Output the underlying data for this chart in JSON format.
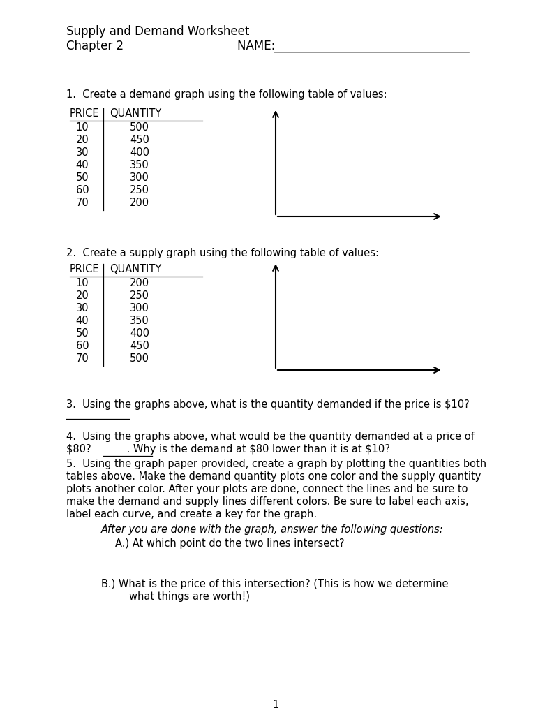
{
  "title_line1": "Supply and Demand Worksheet",
  "title_line2": "Chapter 2",
  "name_label": "NAME: ",
  "demand_price": [
    10,
    20,
    30,
    40,
    50,
    60,
    70
  ],
  "demand_quantity": [
    500,
    450,
    400,
    350,
    300,
    250,
    200
  ],
  "supply_price": [
    10,
    20,
    30,
    40,
    50,
    60,
    70
  ],
  "supply_quantity": [
    200,
    250,
    300,
    350,
    400,
    450,
    500
  ],
  "q1_text": "1.  Create a demand graph using the following table of values:",
  "q2_text": "2.  Create a supply graph using the following table of values:",
  "q3_text": "3.  Using the graphs above, what is the quantity demanded if the price is $10?",
  "q4_line1": "4.  Using the graphs above, what would be the quantity demanded at a price of",
  "q4_line2": "$80?           . Why is the demand at $80 lower than it is at $10?",
  "q5_lines": [
    "5.  Using the graph paper provided, create a graph by plotting the quantities both",
    "tables above. Make the demand quantity plots one color and the supply quantity",
    "plots another color. After your plots are done, connect the lines and be sure to",
    "make the demand and supply lines different colors. Be sure to label each axis,",
    "label each curve, and create a key for the graph."
  ],
  "q5_italic": "After you are done with the graph, answer the following questions:",
  "q5a": "A.) At which point do the two lines intersect?",
  "q5b_line1": "B.) What is the price of this intersection? (This is how we determine",
  "q5b_line2": "what things are worth!)",
  "page_number": "1",
  "bg_color": "#ffffff",
  "font_size_header": 12,
  "font_size_body": 10.5,
  "font_size_table_header": 10.5,
  "font_size_table_data": 10.5
}
